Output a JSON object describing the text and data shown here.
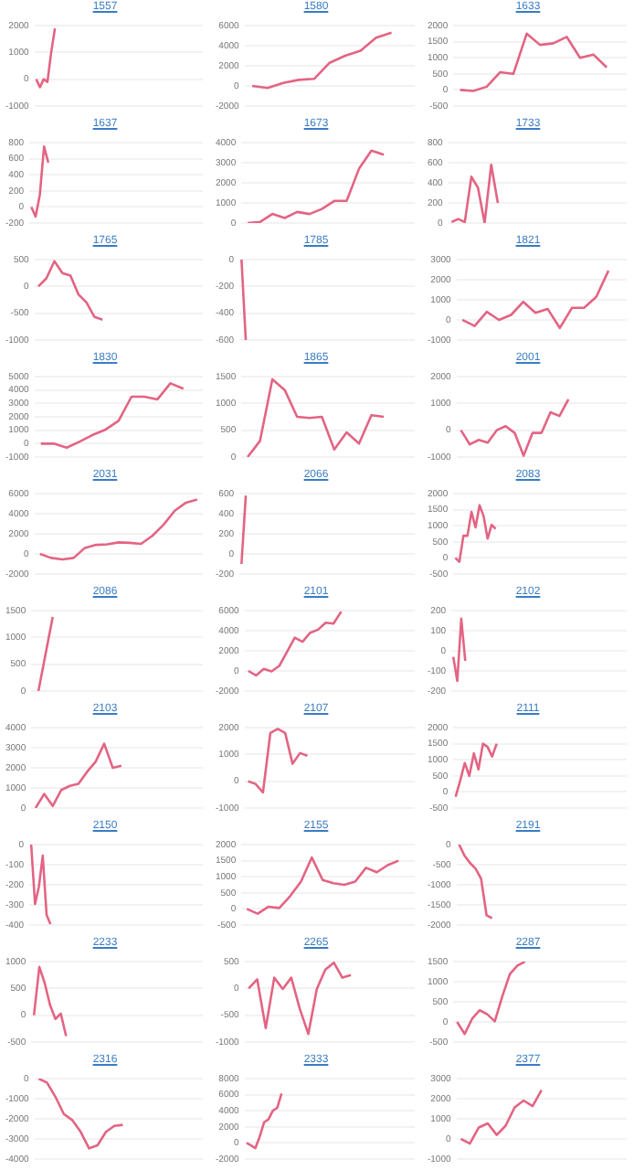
{
  "chart_data": [
    {
      "type": "line",
      "title": "1557",
      "color": "#e36483",
      "categories": [
        null,
        null,
        null,
        null,
        null,
        null,
        null,
        null,
        null,
        null,
        null,
        null,
        null,
        null,
        null,
        null,
        null,
        null,
        null,
        null,
        null,
        null,
        null,
        null,
        null,
        null,
        null,
        null,
        null,
        null,
        null,
        null,
        null,
        null,
        null,
        null,
        null,
        null,
        null,
        null,
        null,
        null,
        null,
        null,
        null
      ],
      "values": [
        0,
        -300,
        0,
        -100,
        1000,
        1900,
        null,
        null,
        null,
        null,
        null,
        null,
        null,
        null,
        null,
        null,
        null,
        null,
        null,
        null,
        null,
        null,
        null,
        null,
        null,
        null,
        null,
        null,
        null,
        null,
        null,
        null,
        null,
        null,
        null,
        null,
        null,
        null,
        null,
        null,
        null,
        null,
        null,
        null,
        null
      ],
      "ylim": [
        -1000,
        2000
      ],
      "yticks": [
        -1000,
        0,
        1000,
        2000
      ],
      "grid": "y",
      "tick_labels": "y"
    },
    {
      "type": "line",
      "title": "1580",
      "color": "#e36483",
      "categories": [
        null,
        null,
        null,
        null,
        null,
        null,
        null,
        null,
        null,
        null,
        null
      ],
      "values": [
        0,
        -200,
        300,
        600,
        700,
        2300,
        3000,
        3500,
        4800,
        5300,
        null
      ],
      "ylim": [
        -2000,
        6000
      ],
      "yticks": [
        -2000,
        0,
        2000,
        4000,
        6000
      ],
      "grid": "y",
      "tick_labels": "y"
    },
    {
      "type": "line",
      "title": "1633",
      "color": "#e36483",
      "categories": [
        null,
        null,
        null,
        null,
        null,
        null,
        null,
        null,
        null,
        null,
        null,
        null,
        null
      ],
      "values": [
        0,
        -30,
        100,
        550,
        500,
        1750,
        1400,
        1450,
        1650,
        1000,
        1100,
        700,
        null
      ],
      "ylim": [
        -500,
        2000
      ],
      "yticks": [
        -500,
        0,
        500,
        1000,
        1500,
        2000
      ],
      "grid": "y",
      "tick_labels": "y"
    },
    {
      "type": "line",
      "title": "1637",
      "color": "#e36483",
      "categories": [
        null,
        null,
        null,
        null,
        null,
        null,
        null,
        null,
        null,
        null,
        null,
        null,
        null,
        null,
        null,
        null,
        null,
        null,
        null,
        null,
        null,
        null,
        null,
        null,
        null,
        null,
        null,
        null,
        null,
        null,
        null,
        null,
        null,
        null,
        null,
        null,
        null,
        null,
        null,
        null,
        null
      ],
      "values": [
        0,
        -120,
        150,
        750,
        550,
        null,
        null,
        null,
        null,
        null,
        null,
        null,
        null,
        null,
        null,
        null,
        null,
        null,
        null,
        null,
        null,
        null,
        null,
        null,
        null,
        null,
        null,
        null,
        null,
        null,
        null,
        null,
        null,
        null,
        null,
        null,
        null,
        null,
        null,
        null,
        null
      ],
      "ylim": [
        -200,
        800
      ],
      "yticks": [
        -200,
        0,
        200,
        400,
        600,
        800
      ],
      "grid": "y",
      "tick_labels": "y"
    },
    {
      "type": "line",
      "title": "1673",
      "color": "#e36483",
      "categories": [
        null,
        null,
        null,
        null,
        null,
        null,
        null,
        null,
        null,
        null,
        null,
        null,
        null,
        null
      ],
      "values": [
        0,
        50,
        450,
        250,
        550,
        450,
        700,
        1100,
        1100,
        2700,
        3600,
        3400,
        null,
        null
      ],
      "ylim": [
        0,
        4000
      ],
      "yticks": [
        0,
        1000,
        2000,
        3000,
        4000
      ],
      "grid": "y",
      "tick_labels": "y"
    },
    {
      "type": "line",
      "title": "1733",
      "color": "#e36483",
      "categories": [
        null,
        null,
        null,
        null,
        null,
        null,
        null,
        null,
        null,
        null,
        null,
        null,
        null,
        null,
        null,
        null,
        null,
        null,
        null,
        null,
        null,
        null,
        null,
        null,
        null,
        null,
        null
      ],
      "values": [
        10,
        40,
        10,
        460,
        350,
        0,
        580,
        200,
        null,
        null,
        null,
        null,
        null,
        null,
        null,
        null,
        null,
        null,
        null,
        null,
        null,
        null,
        null,
        null,
        null,
        null,
        null
      ],
      "ylim": [
        0,
        800
      ],
      "yticks": [
        0,
        200,
        400,
        600,
        800
      ],
      "grid": "y",
      "tick_labels": "y"
    },
    {
      "type": "line",
      "title": "1765",
      "color": "#e36483",
      "categories": [
        null,
        null,
        null,
        null,
        null,
        null,
        null,
        null,
        null,
        null,
        null,
        null,
        null,
        null,
        null,
        null,
        null,
        null,
        null,
        null,
        null
      ],
      "values": [
        0,
        150,
        470,
        250,
        200,
        -150,
        -300,
        -570,
        -620,
        null,
        null,
        null,
        null,
        null,
        null,
        null,
        null,
        null,
        null,
        null,
        null
      ],
      "ylim": [
        -1000,
        500
      ],
      "yticks": [
        -1000,
        -500,
        0,
        500
      ],
      "grid": "y",
      "tick_labels": "y"
    },
    {
      "type": "line",
      "title": "1785",
      "color": "#e36483",
      "categories": [
        null,
        null,
        null,
        null,
        null,
        null,
        null,
        null,
        null,
        null,
        null,
        null,
        null,
        null,
        null,
        null,
        null,
        null,
        null,
        null,
        null,
        null,
        null,
        null,
        null,
        null,
        null,
        null,
        null,
        null,
        null,
        null,
        null,
        null,
        null,
        null,
        null,
        null,
        null,
        null,
        null
      ],
      "values": [
        0,
        -600,
        null,
        null,
        null,
        null,
        null,
        null,
        null,
        null,
        null,
        null,
        null,
        null,
        null,
        null,
        null,
        null,
        null,
        null,
        null,
        null,
        null,
        null,
        null,
        null,
        null,
        null,
        null,
        null,
        null,
        null,
        null,
        null,
        null,
        null,
        null,
        null,
        null,
        null,
        null
      ],
      "ylim": [
        -600,
        0
      ],
      "yticks": [
        -600,
        -400,
        -200,
        0
      ],
      "grid": "y",
      "tick_labels": "y"
    },
    {
      "type": "line",
      "title": "1821",
      "color": "#e36483",
      "categories": [
        null,
        null,
        null,
        null,
        null,
        null,
        null,
        null,
        null,
        null,
        null,
        null,
        null,
        null
      ],
      "values": [
        0,
        -300,
        400,
        0,
        250,
        900,
        350,
        550,
        -400,
        600,
        600,
        1150,
        2450,
        null
      ],
      "ylim": [
        -1000,
        3000
      ],
      "yticks": [
        -1000,
        0,
        1000,
        2000,
        3000
      ],
      "grid": "y",
      "tick_labels": "y"
    },
    {
      "type": "line",
      "title": "1830",
      "color": "#e36483",
      "categories": [
        null,
        null,
        null,
        null,
        null,
        null,
        null,
        null,
        null,
        null,
        null,
        null,
        null
      ],
      "values": [
        0,
        0,
        -300,
        150,
        650,
        1050,
        1700,
        3500,
        3500,
        3300,
        4500,
        4100,
        null
      ],
      "ylim": [
        -1000,
        5000
      ],
      "yticks": [
        -1000,
        0,
        1000,
        2000,
        3000,
        4000,
        5000
      ],
      "grid": "y",
      "tick_labels": "y"
    },
    {
      "type": "line",
      "title": "1865",
      "color": "#e36483",
      "categories": [
        null,
        null,
        null,
        null,
        null,
        null,
        null,
        null,
        null,
        null,
        null,
        null,
        null,
        null
      ],
      "values": [
        0,
        300,
        1450,
        1250,
        750,
        730,
        750,
        140,
        460,
        250,
        780,
        750,
        null,
        null
      ],
      "ylim": [
        0,
        1500
      ],
      "yticks": [
        0,
        500,
        1000,
        1500
      ],
      "grid": "y",
      "tick_labels": "y"
    },
    {
      "type": "line",
      "title": "2001",
      "color": "#e36483",
      "categories": [
        null,
        null,
        null,
        null,
        null,
        null,
        null,
        null,
        null,
        null,
        null,
        null,
        null,
        null,
        null,
        null,
        null,
        null,
        null
      ],
      "values": [
        0,
        -530,
        -360,
        -460,
        0,
        150,
        -100,
        -950,
        -100,
        -100,
        670,
        530,
        1150,
        null,
        null,
        null,
        null,
        null,
        null
      ],
      "ylim": [
        -1000,
        2000
      ],
      "yticks": [
        -1000,
        0,
        1000,
        2000
      ],
      "grid": "y",
      "tick_labels": "y"
    },
    {
      "type": "line",
      "title": "2031",
      "color": "#e36483",
      "categories": [
        null,
        null,
        null,
        null,
        null,
        null,
        null,
        null,
        null,
        null,
        null,
        null,
        null,
        null,
        null
      ],
      "values": [
        0,
        -400,
        -550,
        -400,
        600,
        900,
        950,
        1150,
        1100,
        1000,
        1800,
        2900,
        4300,
        5100,
        5400
      ],
      "ylim": [
        -2000,
        6000
      ],
      "yticks": [
        -2000,
        0,
        2000,
        4000,
        6000
      ],
      "grid": "y",
      "tick_labels": "y"
    },
    {
      "type": "line",
      "title": "2066",
      "color": "#e36483",
      "categories": [
        null,
        null,
        null,
        null,
        null,
        null,
        null,
        null,
        null,
        null,
        null,
        null,
        null,
        null,
        null,
        null,
        null,
        null,
        null,
        null,
        null,
        null,
        null,
        null,
        null,
        null,
        null,
        null,
        null,
        null,
        null,
        null,
        null,
        null,
        null,
        null,
        null,
        null,
        null,
        null,
        null
      ],
      "values": [
        -100,
        580,
        null,
        null,
        null,
        null,
        null,
        null,
        null,
        null,
        null,
        null,
        null,
        null,
        null,
        null,
        null,
        null,
        null,
        null,
        null,
        null,
        null,
        null,
        null,
        null,
        null,
        null,
        null,
        null,
        null,
        null,
        null,
        null,
        null,
        null,
        null,
        null,
        null,
        null,
        null
      ],
      "ylim": [
        -200,
        600
      ],
      "yticks": [
        -200,
        0,
        200,
        400,
        600
      ],
      "grid": "y",
      "tick_labels": "y"
    },
    {
      "type": "line",
      "title": "2083",
      "color": "#e36483",
      "categories": [
        null,
        null,
        null,
        null,
        null,
        null,
        null,
        null,
        null,
        null,
        null,
        null,
        null,
        null,
        null,
        null,
        null,
        null,
        null,
        null,
        null,
        null,
        null,
        null,
        null,
        null,
        null,
        null,
        null,
        null,
        null,
        null,
        null,
        null,
        null,
        null,
        null,
        null,
        null,
        null,
        null,
        null,
        null
      ],
      "values": [
        0,
        -120,
        690,
        690,
        1430,
        950,
        1640,
        1300,
        600,
        1030,
        900,
        null,
        null,
        null,
        null,
        null,
        null,
        null,
        null,
        null,
        null,
        null,
        null,
        null,
        null,
        null,
        null,
        null,
        null,
        null,
        null,
        null,
        null,
        null,
        null,
        null,
        null,
        null,
        null,
        null,
        null,
        null,
        null
      ],
      "ylim": [
        -500,
        2000
      ],
      "yticks": [
        -500,
        0,
        500,
        1000,
        1500,
        2000
      ],
      "grid": "y",
      "tick_labels": "y"
    },
    {
      "type": "line",
      "title": "2086",
      "color": "#e36483",
      "categories": [
        null,
        null,
        null,
        null,
        null,
        null,
        null,
        null,
        null,
        null,
        null,
        null
      ],
      "values": [
        0,
        1380,
        null,
        null,
        null,
        null,
        null,
        null,
        null,
        null,
        null,
        null
      ],
      "ylim": [
        0,
        1500
      ],
      "yticks": [
        0,
        500,
        1000,
        1500
      ],
      "grid": "y",
      "tick_labels": "y"
    },
    {
      "type": "line",
      "title": "2101",
      "color": "#e36483",
      "categories": [
        null,
        null,
        null,
        null,
        null,
        null,
        null,
        null,
        null,
        null,
        null,
        null,
        null,
        null,
        null,
        null,
        null,
        null,
        null,
        null,
        null,
        null
      ],
      "values": [
        0,
        -450,
        200,
        -50,
        500,
        1900,
        3300,
        2900,
        3800,
        4100,
        4800,
        4700,
        5900,
        null,
        null,
        null,
        null,
        null,
        null,
        null,
        null,
        null
      ],
      "ylim": [
        -2000,
        6000
      ],
      "yticks": [
        -2000,
        0,
        2000,
        4000,
        6000
      ],
      "grid": "y",
      "tick_labels": "y"
    },
    {
      "type": "line",
      "title": "2102",
      "color": "#e36483",
      "categories": [
        null,
        null,
        null,
        null,
        null,
        null,
        null,
        null,
        null,
        null,
        null,
        null,
        null,
        null,
        null,
        null,
        null,
        null,
        null,
        null,
        null,
        null,
        null,
        null,
        null,
        null,
        null,
        null,
        null,
        null,
        null,
        null,
        null,
        null,
        null,
        null,
        null,
        null,
        null,
        null,
        null,
        null,
        null,
        null
      ],
      "values": [
        -30,
        -150,
        160,
        -50,
        null,
        null,
        null,
        null,
        null,
        null,
        null,
        null,
        null,
        null,
        null,
        null,
        null,
        null,
        null,
        null,
        null,
        null,
        null,
        null,
        null,
        null,
        null,
        null,
        null,
        null,
        null,
        null,
        null,
        null,
        null,
        null,
        null,
        null,
        null,
        null,
        null,
        null,
        null,
        null
      ],
      "ylim": [
        -200,
        200
      ],
      "yticks": [
        -200,
        -100,
        0,
        100,
        200
      ],
      "grid": "y",
      "tick_labels": "y"
    },
    {
      "type": "line",
      "title": "2103",
      "color": "#e36483",
      "categories": [
        null,
        null,
        null,
        null,
        null,
        null,
        null,
        null,
        null,
        null,
        null,
        null,
        null,
        null,
        null,
        null,
        null,
        null,
        null,
        null
      ],
      "values": [
        0,
        700,
        100,
        900,
        1100,
        1200,
        1800,
        2300,
        3200,
        2000,
        2100,
        null,
        null,
        null,
        null,
        null,
        null,
        null,
        null,
        null
      ],
      "ylim": [
        0,
        4000
      ],
      "yticks": [
        0,
        1000,
        2000,
        3000,
        4000
      ],
      "grid": "y",
      "tick_labels": "y"
    },
    {
      "type": "line",
      "title": "2107",
      "color": "#e36483",
      "categories": [
        null,
        null,
        null,
        null,
        null,
        null,
        null,
        null,
        null,
        null,
        null,
        null,
        null,
        null,
        null,
        null,
        null,
        null,
        null,
        null,
        null,
        null,
        null
      ],
      "values": [
        0,
        -100,
        -420,
        1800,
        1950,
        1800,
        650,
        1050,
        950,
        null,
        null,
        null,
        null,
        null,
        null,
        null,
        null,
        null,
        null,
        null,
        null,
        null,
        null
      ],
      "ylim": [
        -1000,
        2000
      ],
      "yticks": [
        -1000,
        0,
        1000,
        2000
      ],
      "grid": "y",
      "tick_labels": "y"
    },
    {
      "type": "line",
      "title": "2111",
      "color": "#e36483",
      "categories": [
        null,
        null,
        null,
        null,
        null,
        null,
        null,
        null,
        null,
        null,
        null,
        null,
        null,
        null,
        null,
        null,
        null,
        null,
        null,
        null,
        null,
        null,
        null,
        null,
        null,
        null,
        null,
        null,
        null,
        null,
        null,
        null,
        null,
        null,
        null,
        null,
        null,
        null
      ],
      "values": [
        -150,
        350,
        900,
        500,
        1200,
        700,
        1500,
        1400,
        1100,
        1500,
        null,
        null,
        null,
        null,
        null,
        null,
        null,
        null,
        null,
        null,
        null,
        null,
        null,
        null,
        null,
        null,
        null,
        null,
        null,
        null,
        null,
        null,
        null,
        null,
        null,
        null,
        null,
        null
      ],
      "ylim": [
        -500,
        2000
      ],
      "yticks": [
        -500,
        0,
        500,
        1000,
        1500,
        2000
      ],
      "grid": "y",
      "tick_labels": "y"
    },
    {
      "type": "line",
      "title": "2150",
      "color": "#e36483",
      "categories": [
        null,
        null,
        null,
        null,
        null,
        null,
        null,
        null,
        null,
        null,
        null,
        null,
        null,
        null,
        null,
        null,
        null,
        null,
        null,
        null,
        null,
        null,
        null,
        null,
        null,
        null,
        null,
        null,
        null,
        null,
        null,
        null,
        null,
        null,
        null,
        null,
        null,
        null,
        null,
        null,
        null,
        null,
        null,
        null,
        null
      ],
      "values": [
        0,
        -295,
        -210,
        -55,
        -350,
        -395,
        null,
        null,
        null,
        null,
        null,
        null,
        null,
        null,
        null,
        null,
        null,
        null,
        null,
        null,
        null,
        null,
        null,
        null,
        null,
        null,
        null,
        null,
        null,
        null,
        null,
        null,
        null,
        null,
        null,
        null,
        null,
        null,
        null,
        null,
        null,
        null,
        null,
        null,
        null
      ],
      "ylim": [
        -400,
        0
      ],
      "yticks": [
        -400,
        -300,
        -200,
        -100,
        0
      ],
      "grid": "y",
      "tick_labels": "y"
    },
    {
      "type": "line",
      "title": "2155",
      "color": "#e36483",
      "categories": [
        null,
        null,
        null,
        null,
        null,
        null,
        null,
        null,
        null,
        null,
        null,
        null,
        null,
        null,
        null,
        null
      ],
      "values": [
        0,
        -150,
        70,
        30,
        400,
        850,
        1600,
        900,
        800,
        750,
        850,
        1280,
        1140,
        1360,
        1500,
        null
      ],
      "ylim": [
        -500,
        2000
      ],
      "yticks": [
        -500,
        0,
        500,
        1000,
        1500,
        2000
      ],
      "grid": "y",
      "tick_labels": "y"
    },
    {
      "type": "line",
      "title": "2191",
      "color": "#e36483",
      "categories": [
        null,
        null,
        null,
        null,
        null,
        null,
        null,
        null,
        null,
        null,
        null,
        null,
        null,
        null,
        null,
        null,
        null,
        null,
        null,
        null,
        null,
        null,
        null,
        null,
        null,
        null,
        null,
        null,
        null,
        null,
        null
      ],
      "values": [
        0,
        -280,
        -460,
        -600,
        -850,
        -1760,
        -1830,
        null,
        null,
        null,
        null,
        null,
        null,
        null,
        null,
        null,
        null,
        null,
        null,
        null,
        null,
        null,
        null,
        null,
        null,
        null,
        null,
        null,
        null,
        null,
        null
      ],
      "ylim": [
        -2000,
        0
      ],
      "yticks": [
        -2000,
        -1500,
        -1000,
        -500,
        0
      ],
      "grid": "y",
      "tick_labels": "y"
    },
    {
      "type": "line",
      "title": "2233",
      "color": "#e36483",
      "categories": [
        null,
        null,
        null,
        null,
        null,
        null,
        null,
        null,
        null,
        null,
        null,
        null,
        null,
        null,
        null,
        null,
        null,
        null,
        null,
        null,
        null,
        null,
        null,
        null,
        null,
        null,
        null,
        null,
        null,
        null,
        null,
        null
      ],
      "values": [
        0,
        900,
        600,
        190,
        -70,
        30,
        -390,
        null,
        null,
        null,
        null,
        null,
        null,
        null,
        null,
        null,
        null,
        null,
        null,
        null,
        null,
        null,
        null,
        null,
        null,
        null,
        null,
        null,
        null,
        null,
        null,
        null
      ],
      "ylim": [
        -500,
        1000
      ],
      "yticks": [
        -500,
        0,
        500,
        1000
      ],
      "grid": "y",
      "tick_labels": "y"
    },
    {
      "type": "line",
      "title": "2265",
      "color": "#e36483",
      "categories": [
        null,
        null,
        null,
        null,
        null,
        null,
        null,
        null,
        null,
        null,
        null,
        null,
        null,
        null,
        null,
        null,
        null,
        null,
        null,
        null
      ],
      "values": [
        0,
        170,
        -740,
        200,
        -10,
        200,
        -380,
        -850,
        -10,
        350,
        480,
        200,
        250,
        null,
        null,
        null,
        null,
        null,
        null,
        null
      ],
      "ylim": [
        -1000,
        500
      ],
      "yticks": [
        -1000,
        -500,
        0,
        500
      ],
      "grid": "y",
      "tick_labels": "y"
    },
    {
      "type": "line",
      "title": "2287",
      "color": "#e36483",
      "categories": [
        null,
        null,
        null,
        null,
        null,
        null,
        null,
        null,
        null,
        null,
        null,
        null,
        null,
        null,
        null,
        null,
        null,
        null,
        null,
        null,
        null,
        null,
        null
      ],
      "values": [
        0,
        -300,
        80,
        290,
        190,
        15,
        640,
        1190,
        1400,
        1500,
        null,
        null,
        null,
        null,
        null,
        null,
        null,
        null,
        null,
        null,
        null,
        null,
        null
      ],
      "ylim": [
        -500,
        1500
      ],
      "yticks": [
        -500,
        0,
        500,
        1000,
        1500
      ],
      "grid": "y",
      "tick_labels": "y"
    },
    {
      "type": "line",
      "title": "2316",
      "color": "#e36483",
      "categories": [
        null,
        null,
        null,
        null,
        null,
        null,
        null,
        null,
        null,
        null,
        null,
        null,
        null,
        null,
        null,
        null,
        null,
        null,
        null,
        null
      ],
      "values": [
        0,
        -200,
        -900,
        -1760,
        -2060,
        -2650,
        -3470,
        -3320,
        -2650,
        -2350,
        -2300,
        null,
        null,
        null,
        null,
        null,
        null,
        null,
        null,
        null
      ],
      "ylim": [
        -4000,
        0
      ],
      "yticks": [
        -4000,
        -3000,
        -2000,
        -1000,
        0
      ],
      "grid": "y",
      "tick_labels": "y"
    },
    {
      "type": "line",
      "title": "2333",
      "color": "#e36483",
      "categories": [
        null,
        null,
        null,
        null,
        null,
        null,
        null,
        null,
        null,
        null,
        null,
        null,
        null,
        null,
        null,
        null,
        null,
        null,
        null,
        null,
        null,
        null,
        null,
        null,
        null,
        null,
        null,
        null,
        null,
        null,
        null,
        null,
        null,
        null,
        null,
        null,
        null,
        null,
        null
      ],
      "values": [
        0,
        -300,
        -640,
        790,
        2570,
        2930,
        4000,
        4360,
        6140,
        null,
        null,
        null,
        null,
        null,
        null,
        null,
        null,
        null,
        null,
        null,
        null,
        null,
        null,
        null,
        null,
        null,
        null,
        null,
        null,
        null,
        null,
        null,
        null,
        null,
        null,
        null,
        null,
        null,
        null
      ],
      "ylim": [
        -2000,
        8000
      ],
      "yticks": [
        -2000,
        0,
        2000,
        4000,
        6000,
        8000
      ],
      "grid": "y",
      "tick_labels": "y"
    },
    {
      "type": "line",
      "title": "2377",
      "color": "#e36483",
      "categories": [
        null,
        null,
        null,
        null,
        null,
        null,
        null,
        null,
        null,
        null,
        null,
        null,
        null,
        null,
        null,
        null,
        null,
        null,
        null
      ],
      "values": [
        0,
        -230,
        570,
        770,
        200,
        660,
        1570,
        1910,
        1630,
        2430,
        null,
        null,
        null,
        null,
        null,
        null,
        null,
        null,
        null
      ],
      "ylim": [
        -1000,
        3000
      ],
      "yticks": [
        -1000,
        0,
        1000,
        2000,
        3000
      ],
      "grid": "y",
      "tick_labels": "y"
    }
  ]
}
